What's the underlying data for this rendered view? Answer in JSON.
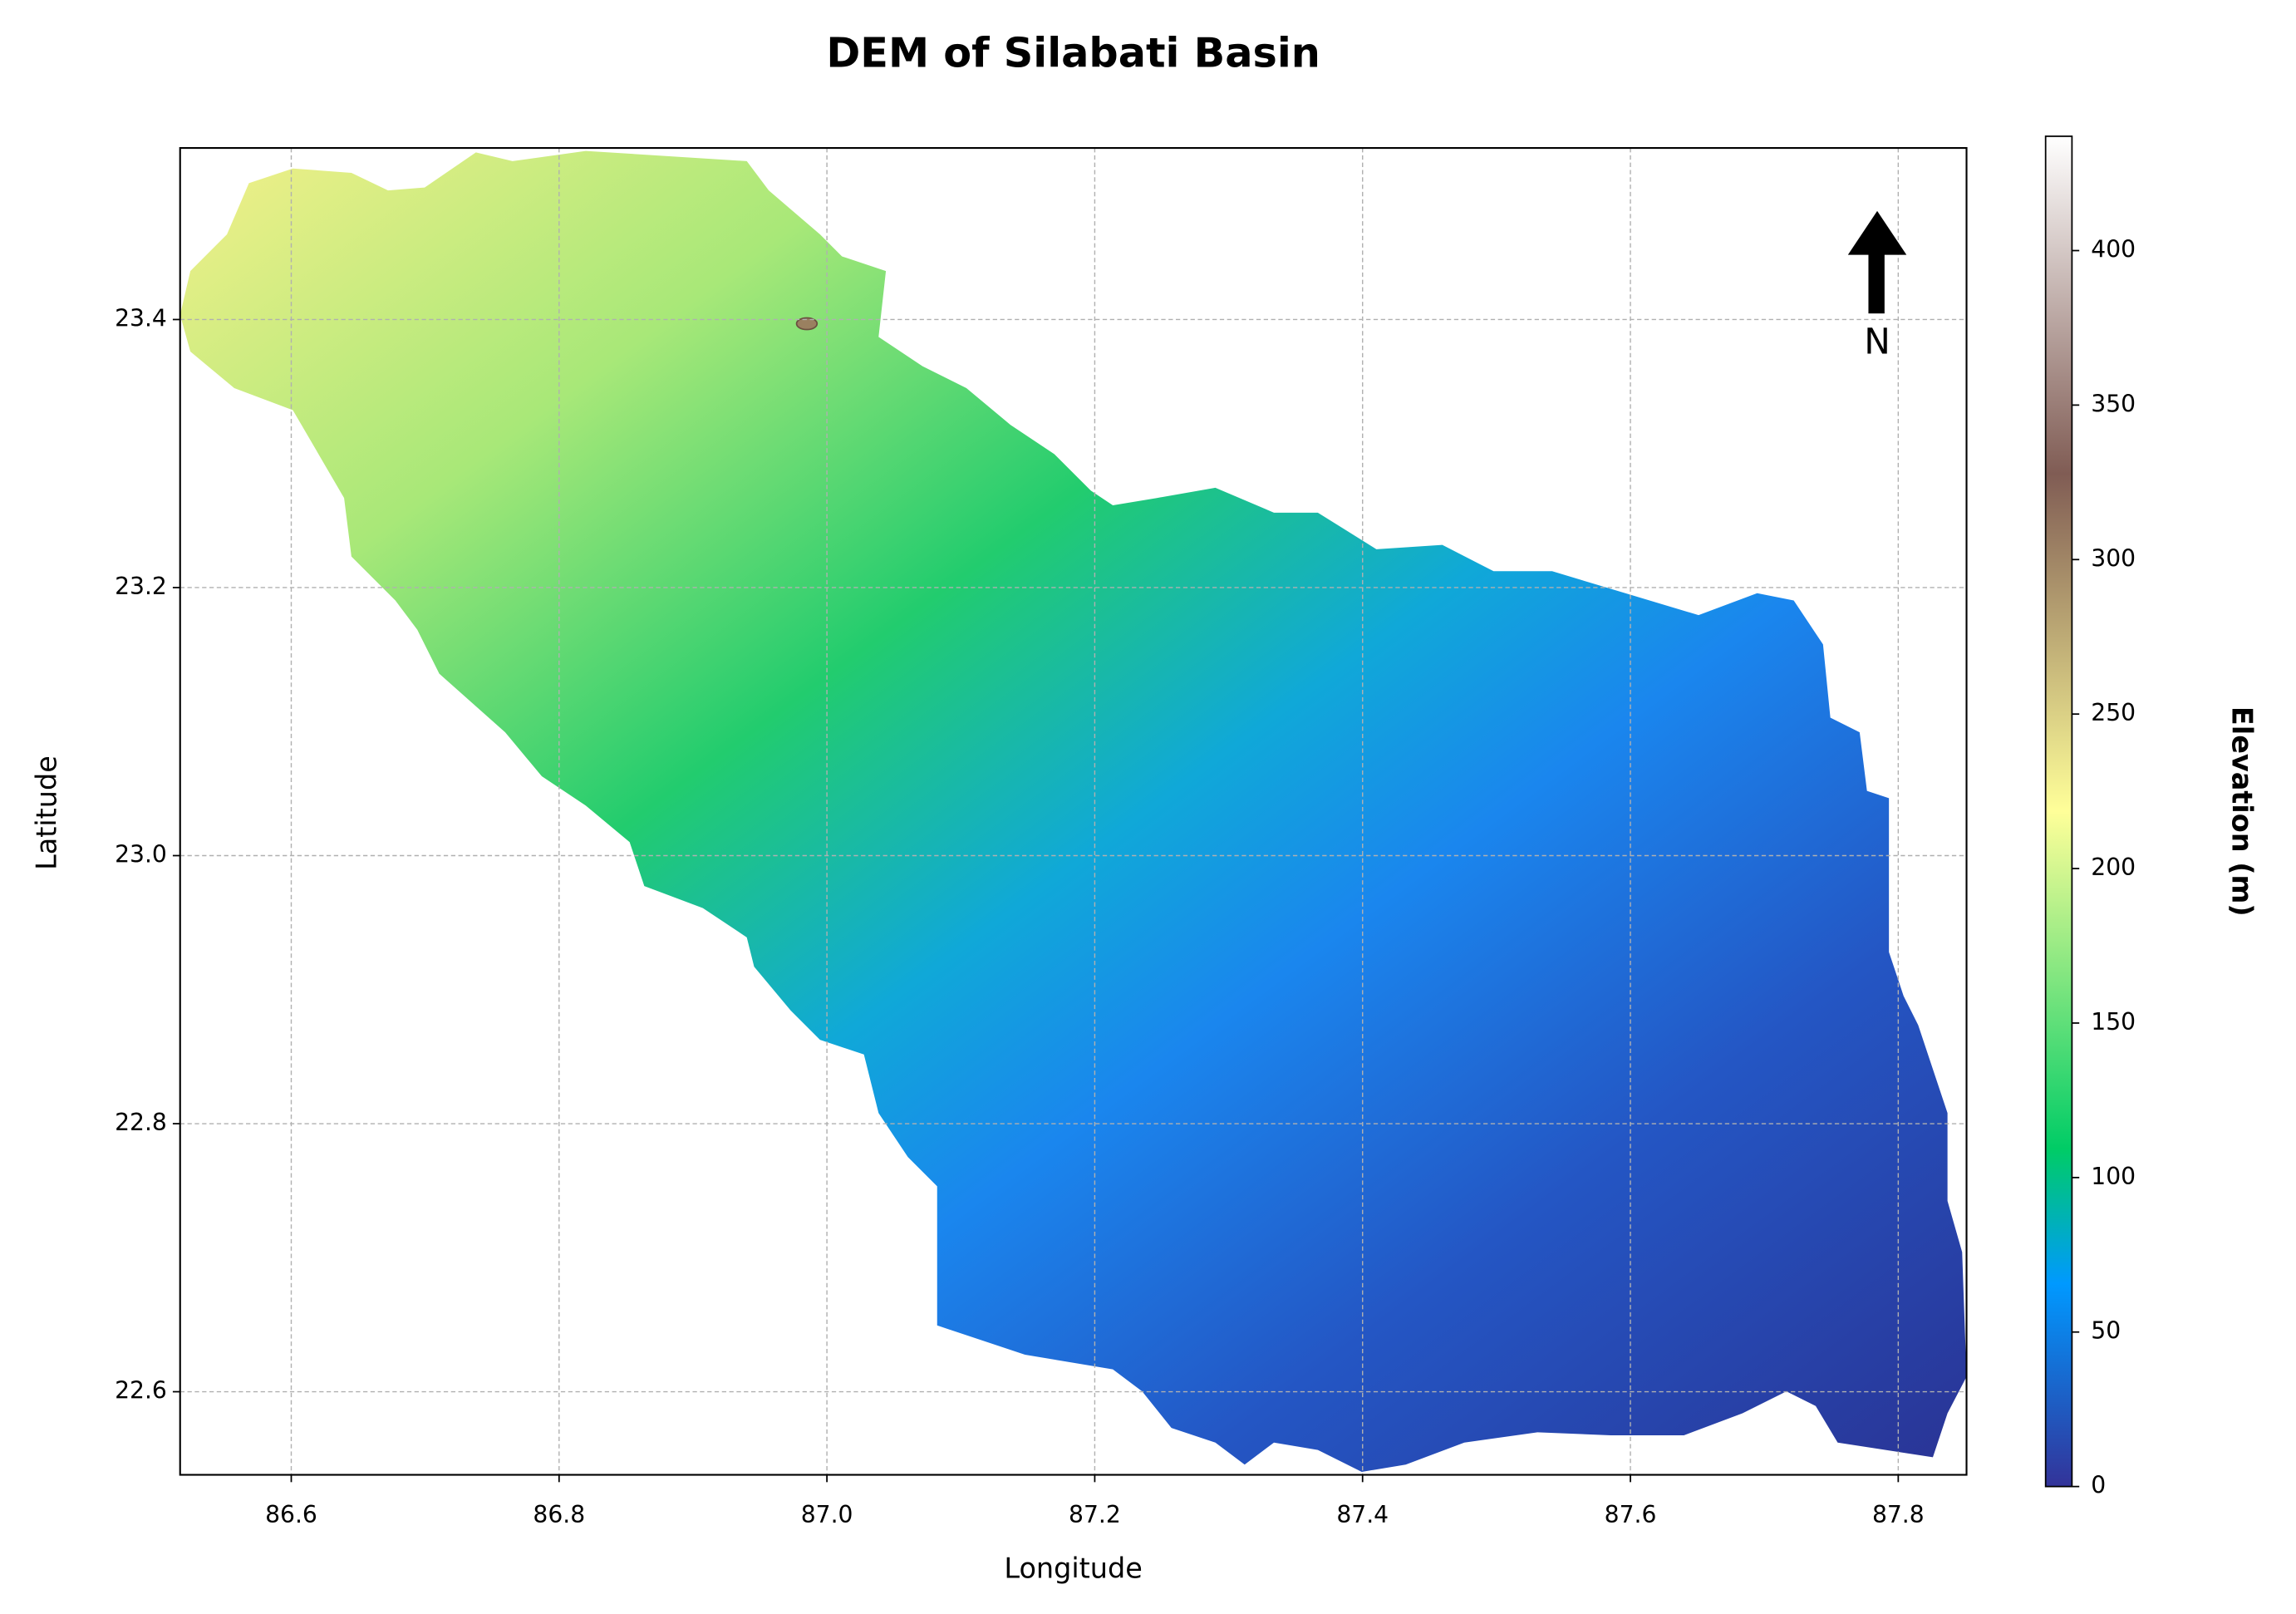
{
  "chart_data": {
    "type": "raster-map",
    "title": "DEM of Silabati Basin",
    "x_label": "Longitude",
    "y_label": "Latitude",
    "xlim": [
      86.517,
      87.851
    ],
    "ylim": [
      22.538,
      23.528
    ],
    "xticks": [
      86.6,
      86.8,
      {
        "value": 87,
        "label": "87.0"
      },
      87.2,
      87.4,
      87.6,
      87.8
    ],
    "yticks": [
      22.6,
      22.8,
      {
        "value": 23,
        "label": "23.0"
      },
      23.2,
      23.4
    ],
    "grid": true,
    "north_label": "N",
    "colorbar": {
      "label": "Elevation (m)",
      "lim": [
        0,
        437
      ],
      "ticks": [
        0,
        50,
        100,
        150,
        200,
        250,
        300,
        350,
        400
      ]
    }
  }
}
